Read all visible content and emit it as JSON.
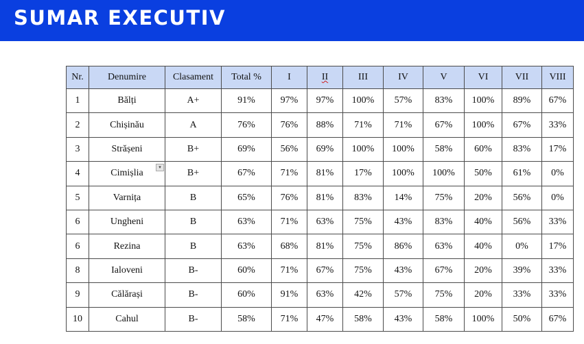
{
  "header": {
    "title": "SUMAR EXECUTIV"
  },
  "table": {
    "columns": [
      "Nr.",
      "Denumire",
      "Clasament",
      "Total %",
      "I",
      "II",
      "III",
      "IV",
      "V",
      "VI",
      "VII",
      "VIII"
    ],
    "rows": [
      [
        "1",
        "Bălți",
        "A+",
        "91%",
        "97%",
        "97%",
        "100%",
        "57%",
        "83%",
        "100%",
        "89%",
        "67%"
      ],
      [
        "2",
        "Chișinău",
        "A",
        "76%",
        "76%",
        "88%",
        "71%",
        "71%",
        "67%",
        "100%",
        "67%",
        "33%"
      ],
      [
        "3",
        "Strășeni",
        "B+",
        "69%",
        "56%",
        "69%",
        "100%",
        "100%",
        "58%",
        "60%",
        "83%",
        "17%"
      ],
      [
        "4",
        "Cimișlia",
        "B+",
        "67%",
        "71%",
        "81%",
        "17%",
        "100%",
        "100%",
        "50%",
        "61%",
        "0%"
      ],
      [
        "5",
        "Varnița",
        "B",
        "65%",
        "76%",
        "81%",
        "83%",
        "14%",
        "75%",
        "20%",
        "56%",
        "0%"
      ],
      [
        "6",
        "Ungheni",
        "B",
        "63%",
        "71%",
        "63%",
        "75%",
        "43%",
        "83%",
        "40%",
        "56%",
        "33%"
      ],
      [
        "6",
        "Rezina",
        "B",
        "63%",
        "68%",
        "81%",
        "75%",
        "86%",
        "63%",
        "40%",
        "0%",
        "17%"
      ],
      [
        "8",
        "Ialoveni",
        "B-",
        "60%",
        "71%",
        "67%",
        "75%",
        "43%",
        "67%",
        "20%",
        "39%",
        "33%"
      ],
      [
        "9",
        "Călărași",
        "B-",
        "60%",
        "91%",
        "63%",
        "42%",
        "57%",
        "75%",
        "20%",
        "33%",
        "33%"
      ],
      [
        "10",
        "Cahul",
        "B-",
        "58%",
        "71%",
        "47%",
        "58%",
        "43%",
        "58%",
        "100%",
        "50%",
        "67%"
      ]
    ]
  }
}
